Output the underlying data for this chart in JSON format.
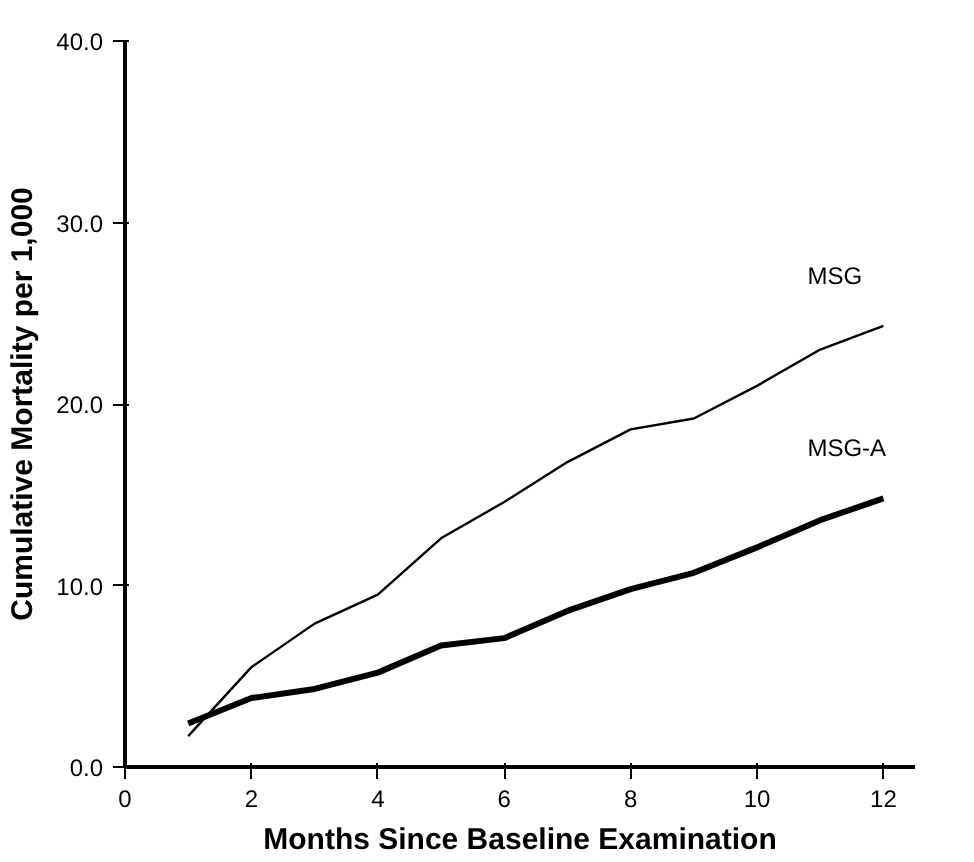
{
  "chart_data": {
    "type": "line",
    "xlabel": "Months Since Baseline Examination",
    "ylabel": "Cumulative Mortality per 1,000",
    "x": [
      1,
      2,
      3,
      4,
      5,
      6,
      7,
      8,
      9,
      10,
      11,
      12
    ],
    "series": [
      {
        "name": "MSG",
        "color": "#000000",
        "values": [
          1.7,
          5.5,
          7.9,
          9.5,
          12.6,
          14.6,
          16.8,
          18.6,
          19.2,
          21,
          23,
          24.3
        ]
      },
      {
        "name": "MSG-A",
        "color": "#000000",
        "values": [
          2.4,
          3.8,
          4.3,
          5.2,
          6.7,
          7.1,
          8.6,
          9.8,
          10.7,
          12.1,
          13.6,
          14.8
        ]
      }
    ],
    "xlim": [
      0,
      12.5
    ],
    "xticks": [
      0,
      2,
      4,
      6,
      8,
      10,
      12
    ],
    "ylim": [
      0,
      40
    ],
    "yticks": [
      {
        "value": 0,
        "label": "0.0"
      },
      {
        "value": 10,
        "label": "10.0"
      },
      {
        "value": 20,
        "label": "20.0"
      },
      {
        "value": 30,
        "label": "30.0"
      },
      {
        "value": 40,
        "label": "40.0"
      }
    ],
    "grid": false,
    "marker": "none",
    "line_style": "solid"
  }
}
